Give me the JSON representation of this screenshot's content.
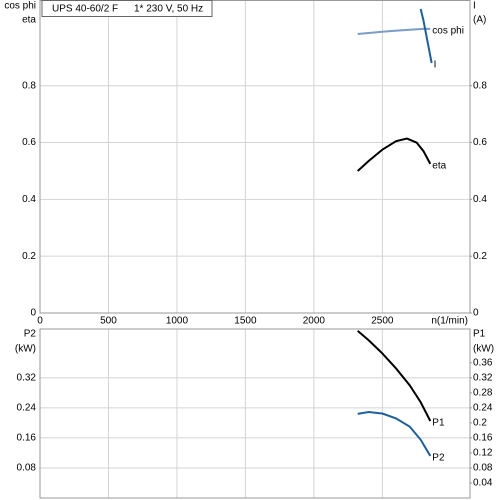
{
  "chart_data": [
    {
      "type": "line",
      "title": "UPS 40-60/2 F",
      "subtitle": "1* 230 V, 50 Hz",
      "ylabel": [
        "cos phi",
        "eta"
      ],
      "y2label": [
        "I",
        "(A)"
      ],
      "xlabel": "n(1/min)",
      "xlim": [
        0,
        3140
      ],
      "xticks": [
        0,
        500,
        1000,
        1500,
        2000,
        2500
      ],
      "ylim": [
        0,
        1.1
      ],
      "yticks": [
        0,
        0.2,
        0.4,
        0.6,
        0.8
      ],
      "y2lim": [
        0,
        1.1
      ],
      "y2ticks": [
        0,
        0.2,
        0.4,
        0.6,
        0.8
      ],
      "grid": true,
      "series": [
        {
          "name": "cos phi",
          "color": "#7a9cc6",
          "x": [
            2320,
            2450,
            2580,
            2700,
            2800,
            2850
          ],
          "values": [
            0.982,
            0.988,
            0.993,
            0.997,
            1.0,
            1.0
          ]
        },
        {
          "name": "I",
          "color": "#1f5f9a",
          "axis": "y2",
          "x": [
            2780,
            2800,
            2820,
            2840,
            2860
          ],
          "values": [
            1.07,
            1.03,
            0.98,
            0.93,
            0.88
          ]
        },
        {
          "name": "eta",
          "color": "#000000",
          "x": [
            2320,
            2400,
            2500,
            2600,
            2680,
            2750,
            2800,
            2850
          ],
          "values": [
            0.5,
            0.535,
            0.575,
            0.605,
            0.614,
            0.6,
            0.57,
            0.525
          ]
        }
      ]
    },
    {
      "type": "line",
      "ylabel": [
        "P2",
        "(kW)"
      ],
      "y2label": [
        "P1",
        "(kW)"
      ],
      "xlim": [
        0,
        3140
      ],
      "ylim": [
        0,
        0.45
      ],
      "yticks": [
        0.08,
        0.16,
        0.24,
        0.32
      ],
      "y2lim": [
        0,
        0.45
      ],
      "y2ticks": [
        0.04,
        0.08,
        0.12,
        0.16,
        0.2,
        0.24,
        0.28,
        0.32,
        0.36
      ],
      "grid": true,
      "series": [
        {
          "name": "P1",
          "color": "#000000",
          "axis": "y2",
          "x": [
            2320,
            2400,
            2500,
            2600,
            2700,
            2780,
            2850
          ],
          "values": [
            0.445,
            0.42,
            0.385,
            0.345,
            0.3,
            0.255,
            0.205
          ]
        },
        {
          "name": "P2",
          "color": "#1f5f9a",
          "x": [
            2320,
            2400,
            2500,
            2600,
            2700,
            2780,
            2850
          ],
          "values": [
            0.224,
            0.229,
            0.225,
            0.212,
            0.19,
            0.155,
            0.112
          ]
        }
      ]
    }
  ]
}
